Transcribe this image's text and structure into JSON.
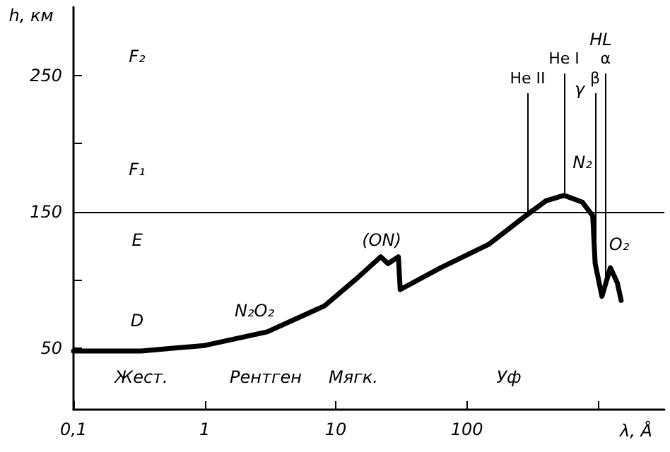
{
  "chart_data": {
    "type": "line",
    "ylabel": "h, км",
    "xlabel": "λ, Å",
    "x": [
      0.1,
      0.33,
      1,
      3,
      6.3,
      8.2,
      14.4,
      22,
      25,
      30,
      31,
      63,
      146,
      280,
      400,
      550,
      760,
      910,
      950,
      1070,
      1240,
      1400,
      1500
    ],
    "series": [
      {
        "color": "#000000",
        "values": [
          48,
          48,
          52,
          62,
          76,
          81,
          101,
          117,
          112,
          117,
          93,
          109,
          126,
          147,
          158,
          162,
          157,
          147,
          112,
          88,
          109,
          98,
          85
        ]
      }
    ],
    "xlim": [
      0.1,
      3200
    ],
    "ylim": [
      5,
      300
    ],
    "log": "x",
    "xticks": [
      {
        "value": 0.1,
        "label": "0,1"
      },
      1,
      10,
      100,
      {
        "value": 1000,
        "label": null
      }
    ],
    "yticks": [
      50,
      {
        "value": 100,
        "label": null
      },
      150,
      {
        "value": 200,
        "label": null
      },
      250
    ],
    "grid": false,
    "marker": "none",
    "line_style": "solid",
    "ref_lines": [
      {
        "axis": "y",
        "value": 150
      },
      {
        "axis": "x",
        "value": 290,
        "label": "He II"
      },
      {
        "axis": "x",
        "value": 550,
        "label": "He I"
      },
      {
        "axis": "x",
        "value": 950,
        "label": "β"
      },
      {
        "axis": "x",
        "value": 1140,
        "label": "α"
      }
    ],
    "annotations": [
      "F₂",
      "F₁",
      "E",
      "D",
      "N₂O₂",
      "(ON)",
      "HL",
      "γ",
      "N₂",
      "O₂",
      "Жест.",
      "Рентген",
      "Мягк.",
      "Уф"
    ]
  }
}
